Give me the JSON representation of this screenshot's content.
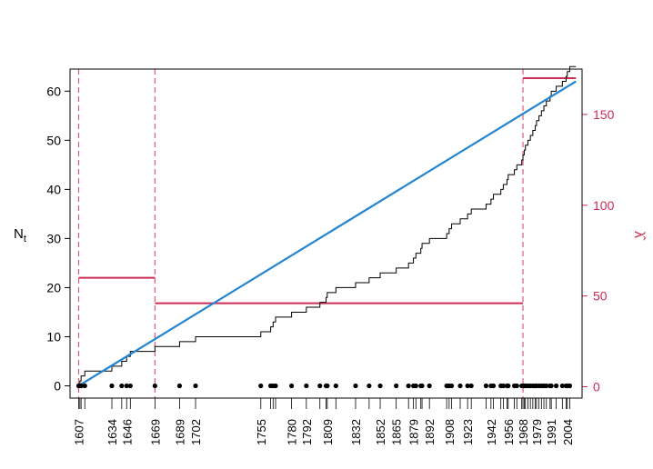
{
  "chart_data": {
    "type": "line",
    "title": "",
    "ylabel": {
      "main": "N",
      "sub": "t"
    },
    "y2label": "λ̂",
    "xlim": [
      1600,
      2016
    ],
    "ylim": [
      -2.5,
      64.5
    ],
    "y2lim": [
      -6.25,
      175
    ],
    "yticks": [
      0,
      10,
      20,
      30,
      40,
      50,
      60
    ],
    "y2ticks": [
      0,
      50,
      100,
      150
    ],
    "xticks": [
      1607,
      1634,
      1646,
      1669,
      1689,
      1702,
      1755,
      1780,
      1792,
      1809,
      1832,
      1852,
      1865,
      1879,
      1892,
      1908,
      1923,
      1942,
      1956,
      1968,
      1979,
      1991,
      2004
    ],
    "event_years": [
      1607,
      1608,
      1609,
      1612,
      1634,
      1642,
      1646,
      1649,
      1669,
      1689,
      1702,
      1755,
      1763,
      1765,
      1767,
      1780,
      1792,
      1803,
      1808,
      1809,
      1816,
      1832,
      1843,
      1852,
      1865,
      1875,
      1879,
      1881,
      1885,
      1886,
      1892,
      1906,
      1908,
      1910,
      1917,
      1923,
      1926,
      1938,
      1942,
      1944,
      1950,
      1952,
      1955,
      1956,
      1961,
      1963,
      1967,
      1968,
      1969,
      1970,
      1972,
      1974,
      1976,
      1978,
      1979,
      1981,
      1983,
      1985,
      1987,
      1990,
      1991,
      1995,
      2000,
      2003,
      2004,
      2006
    ],
    "breakpoints": [
      1607,
      1669,
      1968
    ],
    "rate_segments": [
      {
        "from": 1607,
        "to": 1669,
        "lambda": 60
      },
      {
        "from": 1669,
        "to": 1968,
        "lambda": 46
      },
      {
        "from": 1968,
        "to": 2011,
        "lambda": 170
      }
    ],
    "fit_line": [
      [
        1607,
        0
      ],
      [
        2011,
        62
      ]
    ],
    "colors": {
      "step": "#000000",
      "fit": "#2284d0",
      "rate": "#cd2c53",
      "breakpoint": "#e05a78",
      "rate_axis": "#cd2c53"
    },
    "grid": false,
    "legend": "none"
  }
}
